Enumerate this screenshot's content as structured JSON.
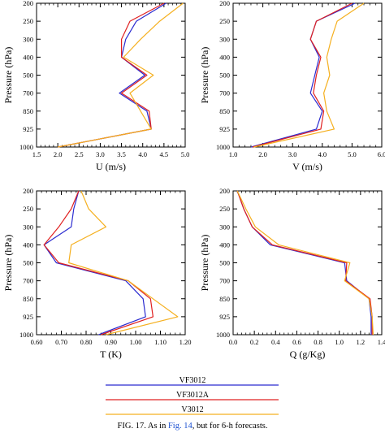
{
  "chart_data": [
    {
      "type": "line",
      "xlabel": "U (m/s)",
      "ylabel": "Pressure (hPa)",
      "xlim": [
        1.5,
        5.0
      ],
      "xticks": [
        "1.5",
        "2.0",
        "2.5",
        "3.0",
        "3.5",
        "4.0",
        "4.5",
        "5.0"
      ],
      "yticks": [
        "200",
        "250",
        "300",
        "400",
        "500",
        "700",
        "850",
        "925",
        "1000"
      ],
      "series": [
        {
          "name": "VF3012",
          "color": "#2b2bd0",
          "values": [
            4.55,
            3.85,
            3.6,
            3.5,
            4.05,
            3.45,
            4.1,
            4.2,
            2.0
          ]
        },
        {
          "name": "VF3012A",
          "color": "#e02020",
          "values": [
            4.5,
            3.7,
            3.5,
            3.5,
            4.1,
            3.5,
            4.15,
            4.2,
            2.0
          ]
        },
        {
          "name": "V3012",
          "color": "#f5b020",
          "values": [
            4.95,
            4.4,
            3.95,
            3.55,
            4.25,
            3.7,
            3.95,
            4.2,
            2.0
          ]
        }
      ]
    },
    {
      "type": "line",
      "xlabel": "V (m/s)",
      "ylabel": "Pressure (hPa)",
      "xlim": [
        1.0,
        6.0
      ],
      "xticks": [
        "1.0",
        "2.0",
        "3.0",
        "4.0",
        "5.0",
        "6.0"
      ],
      "yticks": [
        "200",
        "250",
        "300",
        "400",
        "500",
        "700",
        "850",
        "925",
        "1000"
      ],
      "series": [
        {
          "name": "VF3012",
          "color": "#2b2bd0",
          "values": [
            5.1,
            3.8,
            3.6,
            3.9,
            3.75,
            3.6,
            4.0,
            3.8,
            1.6
          ]
        },
        {
          "name": "VF3012A",
          "color": "#e02020",
          "values": [
            5.0,
            3.8,
            3.6,
            3.95,
            3.8,
            3.7,
            4.05,
            3.95,
            1.65
          ]
        },
        {
          "name": "V3012",
          "color": "#f5b020",
          "values": [
            5.4,
            4.5,
            4.3,
            4.15,
            4.25,
            4.05,
            4.15,
            4.4,
            1.7
          ]
        }
      ]
    },
    {
      "type": "line",
      "xlabel": "T (K)",
      "ylabel": "Pressure (hPa)",
      "xlim": [
        0.6,
        1.2
      ],
      "xticks": [
        "0.60",
        "0.70",
        "0.80",
        "0.90",
        "1.00",
        "1.10",
        "1.20"
      ],
      "yticks": [
        "200",
        "250",
        "300",
        "400",
        "500",
        "700",
        "850",
        "925",
        "1000"
      ],
      "series": [
        {
          "name": "VF3012",
          "color": "#2b2bd0",
          "values": [
            0.77,
            0.75,
            0.74,
            0.63,
            0.68,
            0.96,
            1.03,
            1.04,
            0.85
          ]
        },
        {
          "name": "VF3012A",
          "color": "#e02020",
          "values": [
            0.77,
            0.74,
            0.69,
            0.63,
            0.69,
            0.97,
            1.06,
            1.07,
            0.86
          ]
        },
        {
          "name": "V3012",
          "color": "#f5b020",
          "values": [
            0.78,
            0.81,
            0.88,
            0.74,
            0.73,
            0.97,
            1.07,
            1.17,
            0.88
          ]
        }
      ]
    },
    {
      "type": "line",
      "xlabel": "Q (g/Kg)",
      "ylabel": "Pressure (hPa)",
      "xlim": [
        0.0,
        1.4
      ],
      "xticks": [
        "0.0",
        "0.2",
        "0.4",
        "0.6",
        "0.8",
        "1.0",
        "1.2",
        "1.4"
      ],
      "yticks": [
        "200",
        "250",
        "300",
        "400",
        "500",
        "700",
        "850",
        "925",
        "1000"
      ],
      "series": [
        {
          "name": "VF3012",
          "color": "#2b2bd0",
          "values": [
            0.04,
            0.1,
            0.18,
            0.35,
            1.05,
            1.07,
            1.28,
            1.3,
            1.3
          ]
        },
        {
          "name": "VF3012A",
          "color": "#e02020",
          "values": [
            0.04,
            0.1,
            0.18,
            0.37,
            1.07,
            1.06,
            1.29,
            1.31,
            1.31
          ]
        },
        {
          "name": "V3012",
          "color": "#f5b020",
          "values": [
            0.04,
            0.12,
            0.21,
            0.43,
            1.1,
            1.05,
            1.28,
            1.31,
            1.32
          ]
        }
      ]
    }
  ],
  "legend": {
    "items": [
      {
        "label": "VF3012",
        "color": "#2b2bd0"
      },
      {
        "label": "VF3012A",
        "color": "#e02020"
      },
      {
        "label": "V3012",
        "color": "#f5b020"
      }
    ]
  },
  "caption": {
    "prefix": "FIG. 17. As in ",
    "link": "Fig. 14",
    "suffix": ", but for 6-h forecasts."
  }
}
